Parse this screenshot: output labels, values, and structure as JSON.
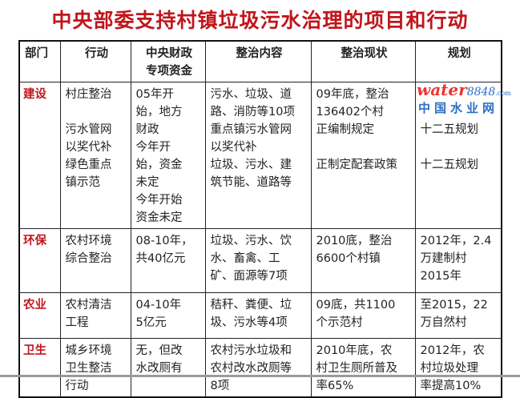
{
  "title": "中央部委支持村镇垃圾污水治理的项目和行动",
  "headers": [
    "部门",
    "行动",
    "中央财政专项资金",
    "整治内容",
    "整治现状",
    "规划"
  ],
  "header_funding_lines": [
    "中央财政",
    "专项资金"
  ],
  "rows": [
    {
      "dept": "建设",
      "action": [
        "村庄整治",
        "",
        "污水管网",
        "以奖代补",
        "绿色重点",
        "镇示范"
      ],
      "funding": [
        "05年开",
        "始，地方",
        "财政",
        "今年开",
        "始，资金",
        "未定",
        "今年开始",
        "资金未定"
      ],
      "content": [
        "污水、垃圾、道",
        "路、消防等10项",
        "重点镇污水管网",
        "以奖代补",
        "垃圾、污水、建",
        "筑节能、道路等"
      ],
      "status": [
        "09年底，整治",
        "136402个村",
        "正编制规定",
        "",
        "正制定配套政策"
      ],
      "plan": [
        "",
        "",
        "十二五规划",
        "",
        "十二五规划"
      ]
    },
    {
      "dept": "环保",
      "action": [
        "农村环境",
        "综合整治"
      ],
      "funding": [
        "08-10年，",
        "共40亿元"
      ],
      "content": [
        "垃圾、污水、饮",
        "水、畜禽、工",
        "矿、面源等7项"
      ],
      "status": [
        "2010底，整治",
        "6600个村镇"
      ],
      "plan": [
        "2012年，2.4",
        "万建制村",
        "2015年"
      ]
    },
    {
      "dept": "农业",
      "action": [
        "农村清洁",
        "工程"
      ],
      "funding": [
        "04-10年",
        "5亿元"
      ],
      "content": [
        "秸秆、粪便、垃",
        "圾、污水等4项"
      ],
      "status": [
        "09底，共1100",
        "个示范村"
      ],
      "plan": [
        "至2015，22",
        "万自然村"
      ]
    },
    {
      "dept": "卫生",
      "action": [
        "城乡环境",
        "卫生整洁",
        "行动"
      ],
      "funding": [
        "无，但改",
        "水改厕有"
      ],
      "content": [
        "农村污水垃圾和",
        "农村改水改厕等",
        "8项"
      ],
      "status": [
        "2010年底，农",
        "村卫生厕所普及",
        "率65%"
      ],
      "plan": [
        "2012年，农",
        "村垃圾处理",
        "率提高10%"
      ]
    }
  ],
  "watermark": {
    "brand": "water",
    "number": "8848",
    "domain": ".com",
    "cn": "中国水业网"
  },
  "colors": {
    "title": "#c0161c",
    "dept": "#c0161c"
  }
}
